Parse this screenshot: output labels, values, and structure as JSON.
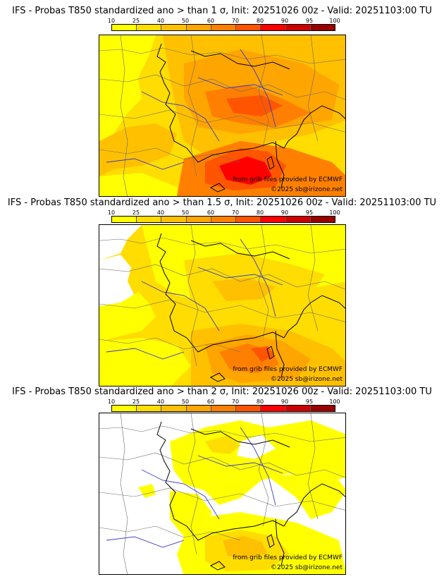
{
  "colorbar": {
    "ticks": [
      "10",
      "25",
      "40",
      "50",
      "60",
      "70",
      "80",
      "90",
      "95",
      "100"
    ],
    "colors": [
      "#ffff00",
      "#ffdd00",
      "#ffc000",
      "#ffa500",
      "#ff8000",
      "#ff5500",
      "#ff0000",
      "#cc0000",
      "#990000"
    ]
  },
  "panels": [
    {
      "title": "IFS - Probas T850  standardized ano > than 1 σ, Init: 20251026 00z - Valid: 20251103:00 TU",
      "credit": "from grib files provided by ECMWF",
      "copyright": "©2025 sb@irizone.net"
    },
    {
      "title": "IFS - Probas T850  standardized ano > than 1.5 σ, Init: 20251026 00z - Valid: 20251103:00 TU",
      "credit": "from grib files provided by ECMWF",
      "copyright": "©2025 sb@irizone.net"
    },
    {
      "title": "IFS - Probas T850  standardized ano > than 2 σ, Init: 20251026 00z - Valid: 20251103:00 TU",
      "credit": "from grib files provided by ECMWF",
      "copyright": "©2025 sb@irizone.net"
    }
  ]
}
